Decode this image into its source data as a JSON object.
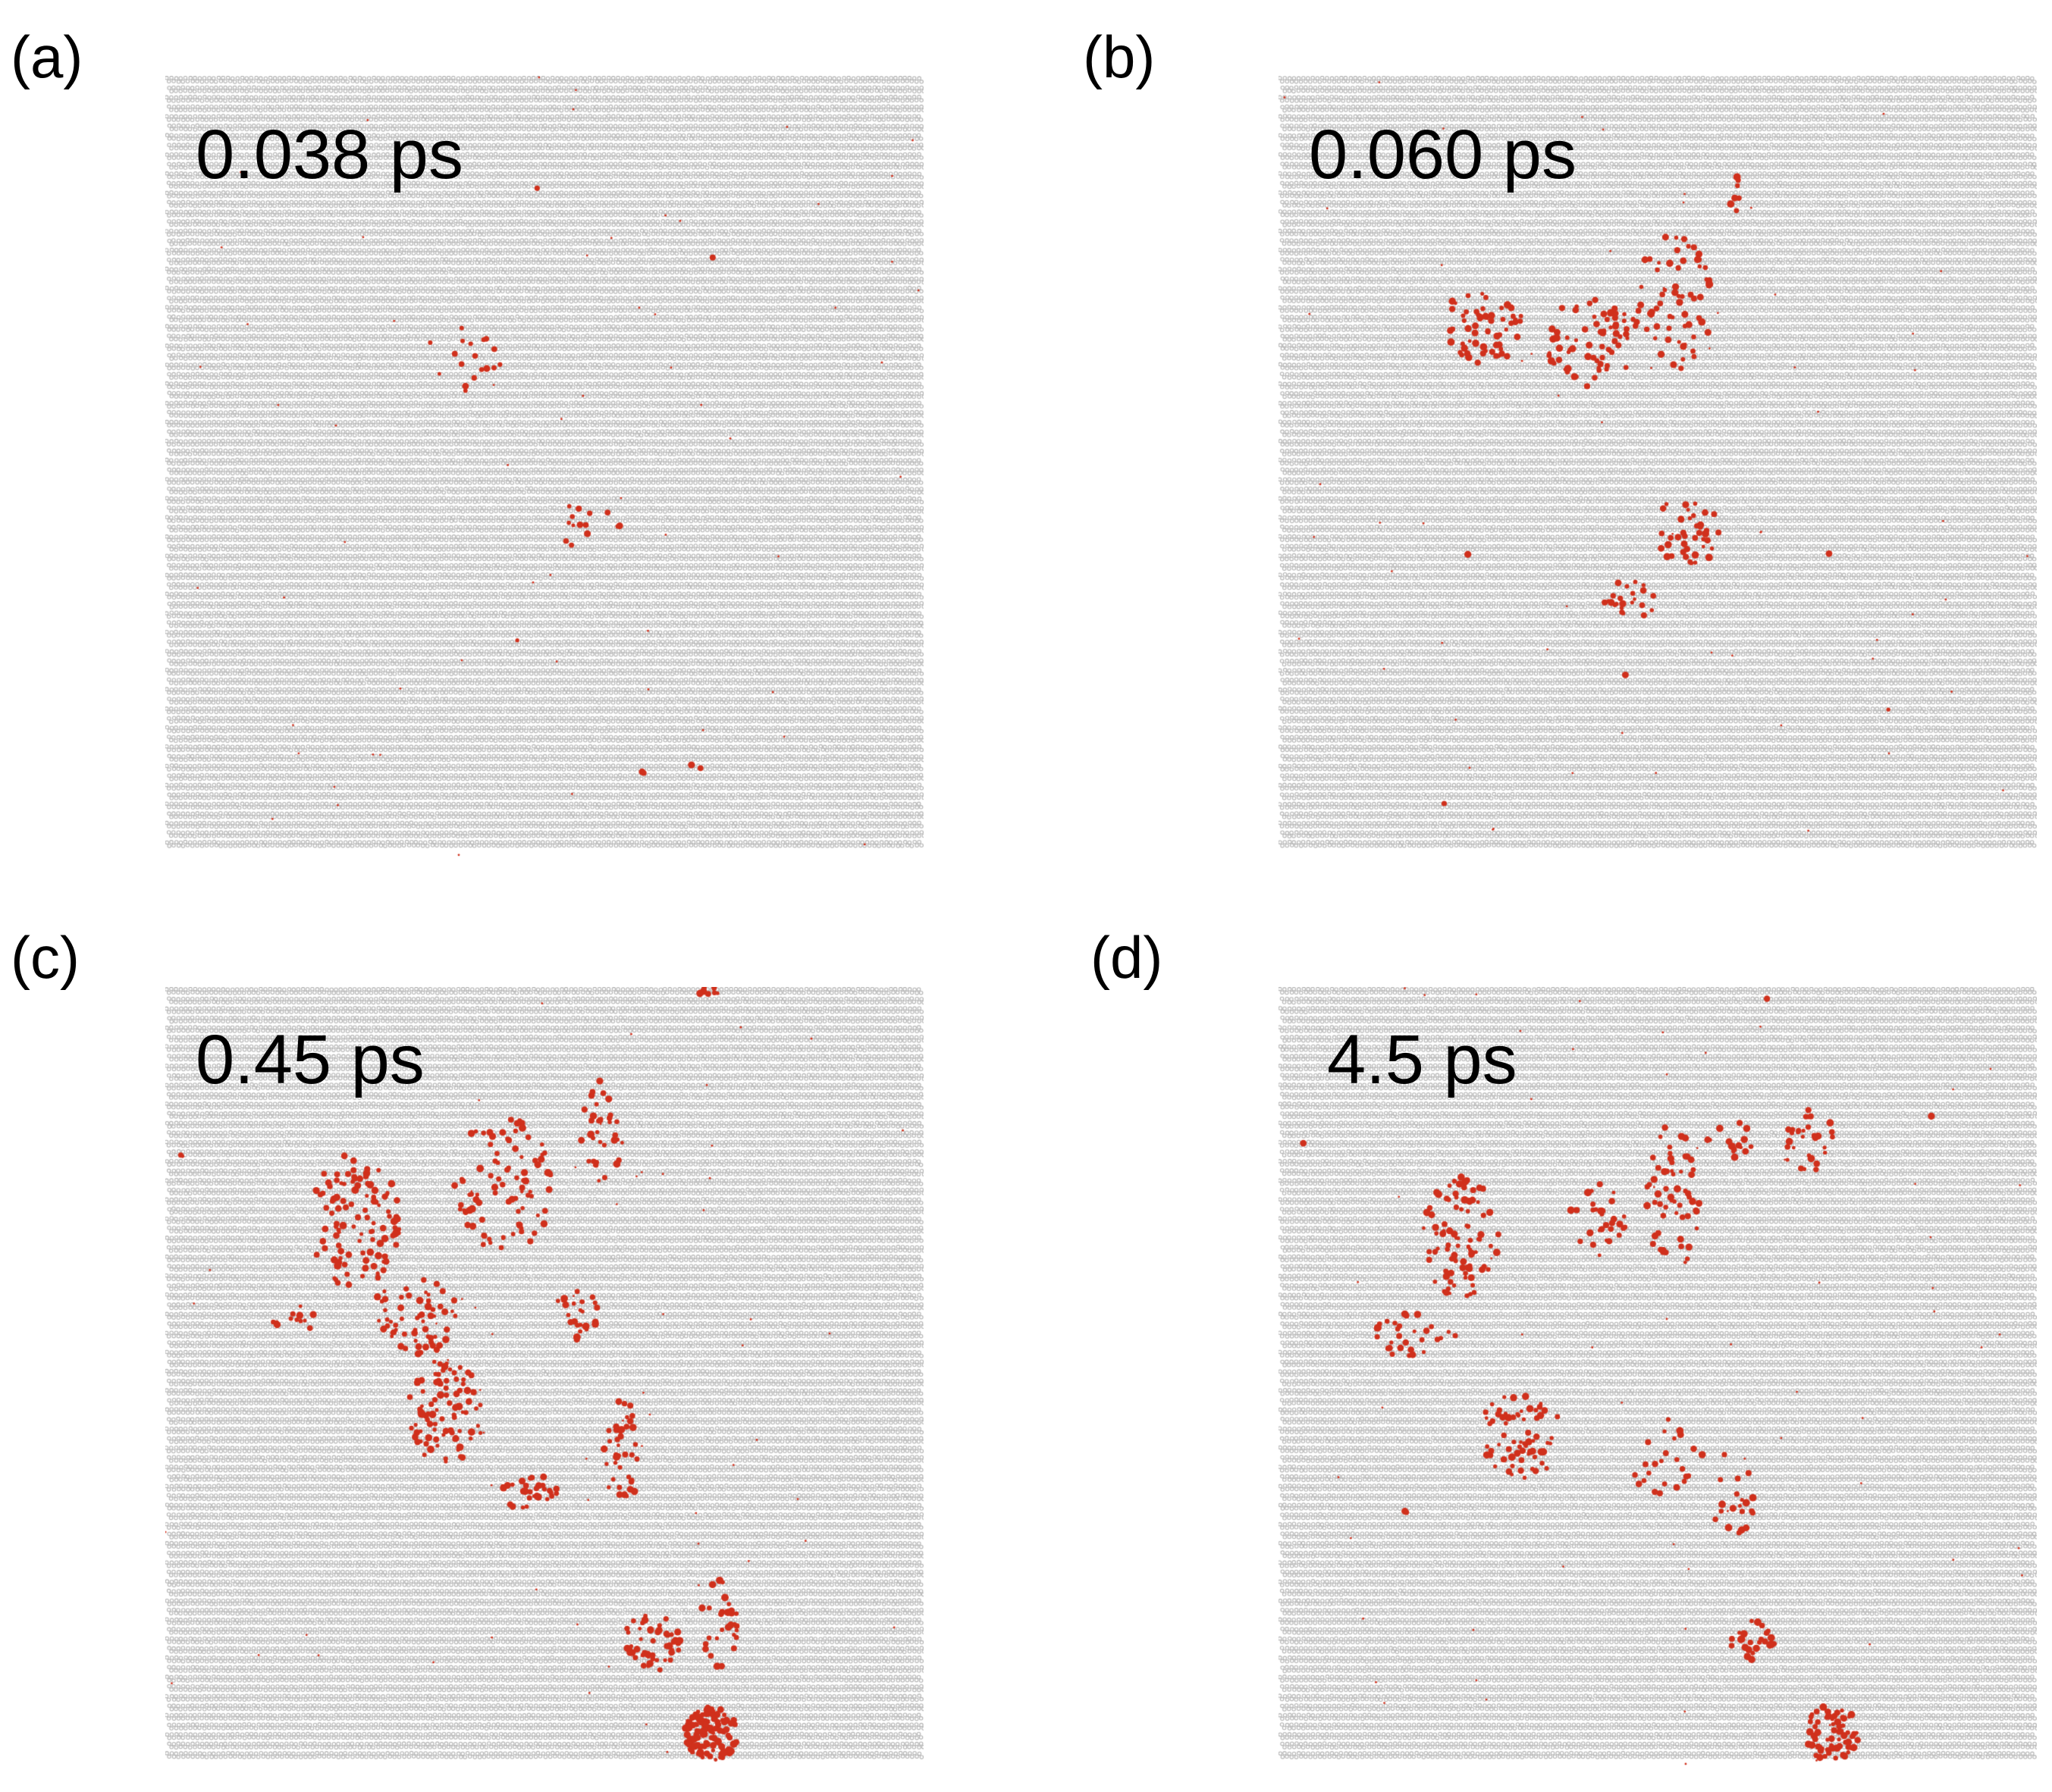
{
  "figure": {
    "panels": [
      {
        "id": "a",
        "label": "(a)",
        "time": "0.038 ps"
      },
      {
        "id": "b",
        "label": "(b)",
        "time": "0.060 ps"
      },
      {
        "id": "c",
        "label": "(c)",
        "time": "0.45 ps"
      },
      {
        "id": "d",
        "label": "(d)",
        "time": "4.5 ps"
      }
    ],
    "colors": {
      "lattice_atom": "#b4b4b4",
      "defect_atom": "#d0301c",
      "background": "#ffffff"
    }
  }
}
